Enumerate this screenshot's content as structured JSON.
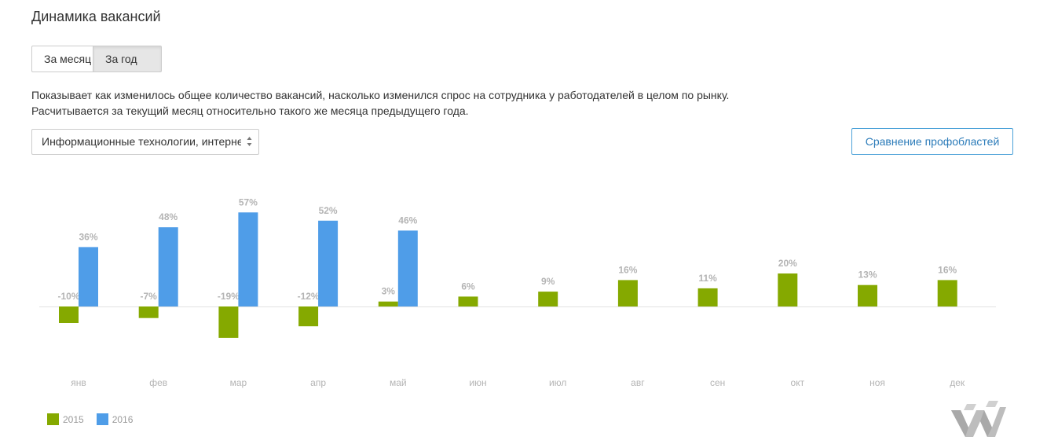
{
  "title": "Динамика вакансий",
  "toggle": {
    "month_label": "За месяц",
    "year_label": "За год"
  },
  "description": {
    "line1": "Показывает как изменилось общее количество вакансий, насколько изменился спрос на сотрудника у работодателей в целом по рынку.",
    "line2": "Расчитывается за текущий месяц относительно такого же месяца предыдущего года."
  },
  "select": {
    "value": "Информационные технологии, интернет, телеком"
  },
  "compare_button": {
    "label": "Сравнение профобластей"
  },
  "colors": {
    "series_2015": "#85a900",
    "series_2016": "#4f9de8",
    "value_label": "#b4b4b4",
    "axis_label": "#b4b4b4",
    "baseline": "#e2e2e2"
  },
  "icons": {
    "select_arrows": "up-down-arrows-icon",
    "logo": "logo-icon"
  },
  "chart_data": {
    "type": "bar",
    "categories": [
      "янв",
      "фев",
      "мар",
      "апр",
      "май",
      "июн",
      "июл",
      "авг",
      "сен",
      "окт",
      "ноя",
      "дек"
    ],
    "series": [
      {
        "name": "2015",
        "values": [
          -10,
          -7,
          -19,
          -12,
          3,
          6,
          9,
          16,
          11,
          20,
          13,
          16
        ],
        "labels": [
          "-10%",
          "-7%",
          "-19%",
          "-12%",
          "3%",
          "6%",
          "9%",
          "16%",
          "11%",
          "20%",
          "13%",
          "16%"
        ]
      },
      {
        "name": "2016",
        "values": [
          36,
          48,
          57,
          52,
          46,
          null,
          null,
          null,
          null,
          null,
          null,
          null
        ],
        "labels": [
          "36%",
          "48%",
          "57%",
          "52%",
          "46%",
          null,
          null,
          null,
          null,
          null,
          null,
          null
        ]
      }
    ],
    "title": "",
    "xlabel": "",
    "ylabel": "",
    "ylim": [
      -19,
      57
    ],
    "grid": false,
    "legend_position": "bottom-left"
  }
}
